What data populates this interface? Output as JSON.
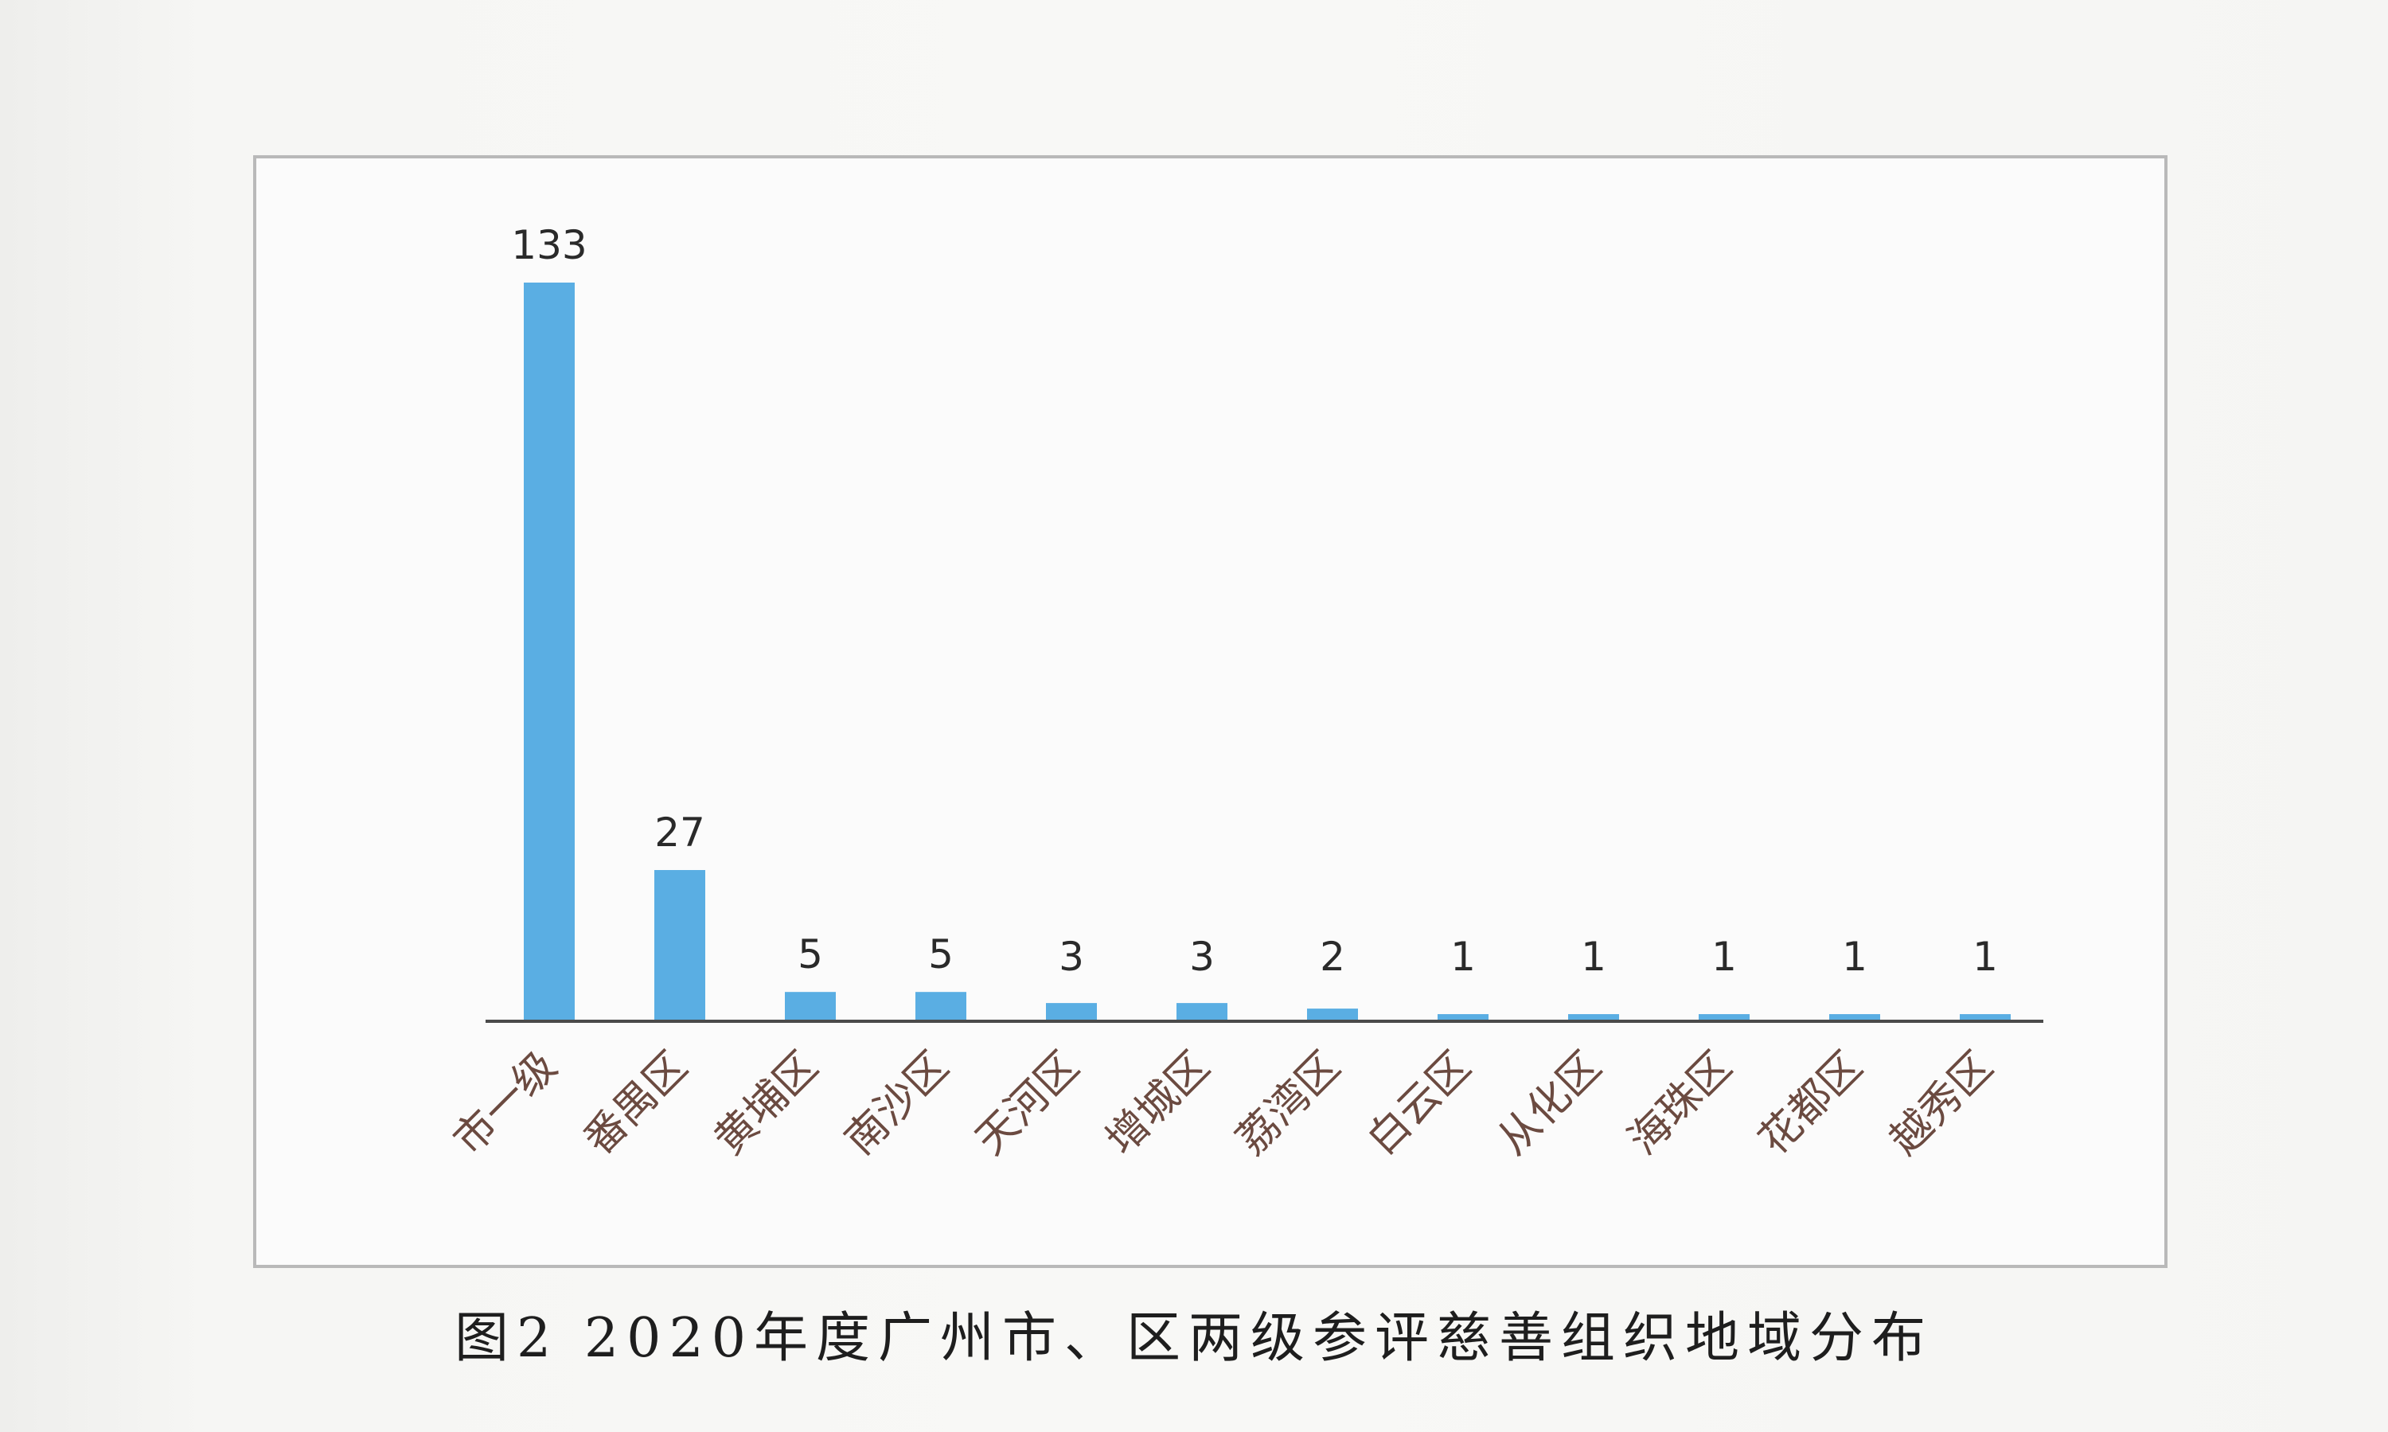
{
  "caption": "图2 2020年度广州市、区两级参评慈善组织地域分布",
  "chart_data": {
    "type": "bar",
    "categories": [
      "市一级",
      "番禺区",
      "黄埔区",
      "南沙区",
      "天河区",
      "增城区",
      "荔湾区",
      "白云区",
      "从化区",
      "海珠区",
      "花都区",
      "越秀区"
    ],
    "values": [
      133,
      27,
      5,
      5,
      3,
      3,
      2,
      1,
      1,
      1,
      1,
      1
    ],
    "title": "",
    "xlabel": "",
    "ylabel": "",
    "ylim": [
      0,
      133
    ],
    "grid": false,
    "legend": "none",
    "data_labels": true,
    "bar_color": "#5aaee3"
  }
}
